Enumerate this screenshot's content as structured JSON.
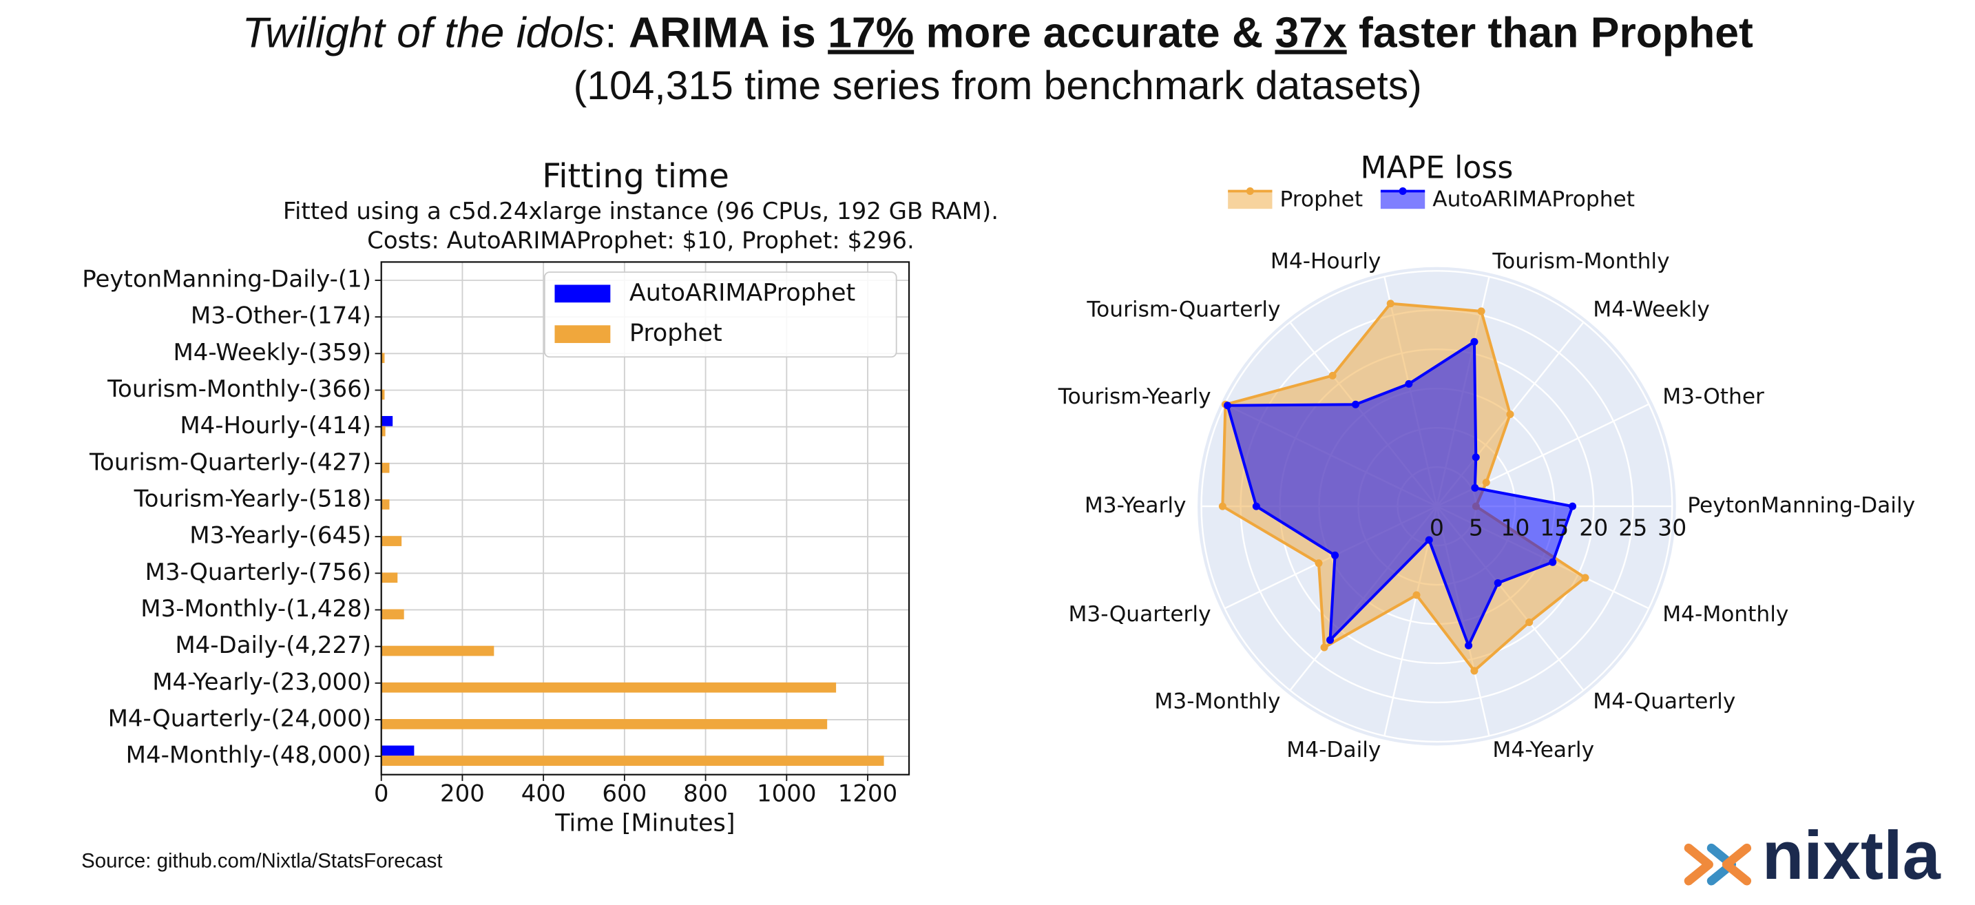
{
  "headline": {
    "italic": "Twilight of the idols",
    "colon": ": ",
    "bold1": "ARIMA is ",
    "u1": "17%",
    "bold2": " more accurate & ",
    "u2": "37x",
    "bold3": " faster than Prophet"
  },
  "subheadline": "(104,315 time series from benchmark datasets)",
  "source": "Source: github.com/Nixtla/StatsForecast",
  "logo": "nixtla",
  "chart_data": [
    {
      "type": "barh",
      "title": "Fitting time",
      "subtitle": [
        "Fitted using a c5d.24xlarge instance (96 CPUs, 192 GB RAM).",
        "Costs: AutoARIMAProphet: $10, Prophet: $296."
      ],
      "xlabel": "Time [Minutes]",
      "categories": [
        "PeytonManning-Daily-(1)",
        "M3-Other-(174)",
        "M4-Weekly-(359)",
        "Tourism-Monthly-(366)",
        "M4-Hourly-(414)",
        "Tourism-Quarterly-(427)",
        "Tourism-Yearly-(518)",
        "M3-Yearly-(645)",
        "M3-Quarterly-(756)",
        "M3-Monthly-(1,428)",
        "M4-Daily-(4,227)",
        "M4-Yearly-(23,000)",
        "M4-Quarterly-(24,000)",
        "M4-Monthly-(48,000)"
      ],
      "series": [
        {
          "name": "AutoARIMAProphet",
          "color": "#0000ff",
          "values": [
            0.1,
            0.2,
            0.5,
            0.5,
            28,
            0.5,
            0.5,
            0.5,
            0.5,
            1,
            1,
            1,
            1,
            81
          ]
        },
        {
          "name": "Prophet",
          "color": "#f0a73c",
          "values": [
            0.5,
            1,
            8,
            8,
            10,
            20,
            20,
            50,
            40,
            56,
            278,
            1122,
            1100,
            1240
          ]
        }
      ],
      "xlim": [
        0,
        1302
      ],
      "xticks": [
        0,
        200,
        400,
        600,
        800,
        1000,
        1200
      ],
      "grid": true,
      "legend": "upper right"
    },
    {
      "type": "radar",
      "title": "MAPE loss",
      "categories": [
        "PeytonManning-Daily",
        "M3-Other",
        "M4-Weekly",
        "Tourism-Monthly",
        "M4-Hourly",
        "Tourism-Quarterly",
        "Tourism-Yearly",
        "M3-Yearly",
        "M3-Quarterly",
        "M3-Monthly",
        "M4-Daily",
        "M4-Yearly",
        "M4-Quarterly",
        "M4-Monthly"
      ],
      "series": [
        {
          "name": "Prophet",
          "color": "#f0a73c",
          "values": [
            5,
            7,
            15,
            25.5,
            26.5,
            21.3,
            29.9,
            27.3,
            16.7,
            23,
            11.6,
            21.5,
            18.9,
            21
          ]
        },
        {
          "name": "AutoARIMAProphet",
          "color": "#0000ff",
          "values": [
            17.3,
            5.4,
            8,
            21.5,
            16,
            16.6,
            29.6,
            23,
            14.4,
            21.8,
            4.4,
            18.2,
            12.5,
            16.4
          ]
        }
      ],
      "rlim": [
        0,
        30
      ],
      "rticks": [
        0,
        5,
        10,
        15,
        20,
        25,
        30
      ],
      "legend": "upper center"
    }
  ]
}
